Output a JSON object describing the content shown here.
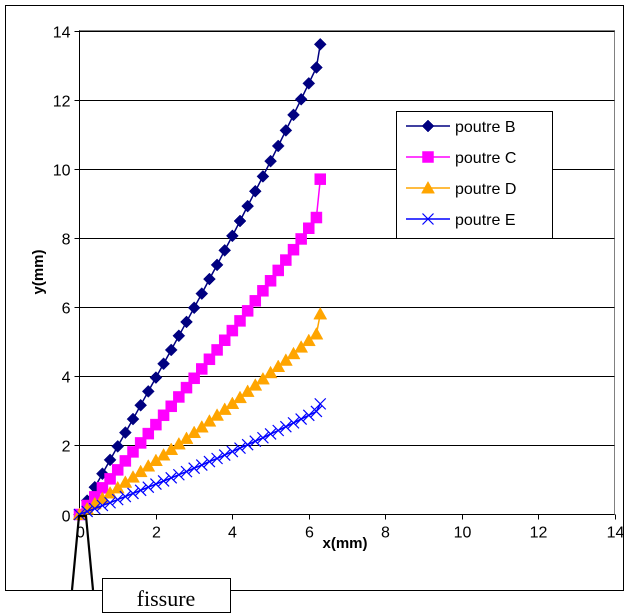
{
  "chart_data": {
    "type": "line",
    "xlabel": "x(mm)",
    "ylabel": "y(mm)",
    "xlim": [
      0,
      14
    ],
    "ylim": [
      0,
      14
    ],
    "xticks": [
      "0",
      "2",
      "4",
      "6",
      "8",
      "10",
      "12",
      "14"
    ],
    "yticks": [
      "0",
      "2",
      "4",
      "6",
      "8",
      "10",
      "12",
      "14"
    ],
    "grid": "horizontal",
    "legend_position": "right",
    "series": [
      {
        "name": "poutre B",
        "color": "#000080",
        "marker": "diamond",
        "x": [
          0.0,
          0.2,
          0.4,
          0.6,
          0.8,
          1.0,
          1.2,
          1.4,
          1.6,
          1.8,
          2.0,
          2.2,
          2.4,
          2.6,
          2.8,
          3.0,
          3.2,
          3.4,
          3.6,
          3.8,
          4.0,
          4.2,
          4.4,
          4.6,
          4.8,
          5.0,
          5.2,
          5.4,
          5.6,
          5.8,
          6.0,
          6.2,
          6.3
        ],
        "y": [
          0.0,
          0.4,
          0.79,
          1.18,
          1.58,
          1.97,
          2.37,
          2.76,
          3.16,
          3.56,
          3.96,
          4.36,
          4.76,
          5.17,
          5.57,
          5.98,
          6.39,
          6.81,
          7.22,
          7.64,
          8.06,
          8.49,
          8.92,
          9.35,
          9.78,
          10.22,
          10.66,
          11.11,
          11.56,
          12.01,
          12.47,
          12.93,
          13.6
        ]
      },
      {
        "name": "poutre C",
        "color": "#FF00FF",
        "marker": "square",
        "x": [
          0.0,
          0.2,
          0.4,
          0.6,
          0.8,
          1.0,
          1.2,
          1.4,
          1.6,
          1.8,
          2.0,
          2.2,
          2.4,
          2.6,
          2.8,
          3.0,
          3.2,
          3.4,
          3.6,
          3.8,
          4.0,
          4.2,
          4.4,
          4.6,
          4.8,
          5.0,
          5.2,
          5.4,
          5.6,
          5.8,
          6.0,
          6.2,
          6.3
        ],
        "y": [
          0.0,
          0.26,
          0.51,
          0.77,
          1.03,
          1.29,
          1.55,
          1.81,
          2.07,
          2.34,
          2.6,
          2.87,
          3.13,
          3.4,
          3.67,
          3.94,
          4.21,
          4.49,
          4.76,
          5.04,
          5.32,
          5.6,
          5.89,
          6.18,
          6.47,
          6.76,
          7.06,
          7.36,
          7.66,
          7.97,
          8.28,
          8.59,
          9.7
        ]
      },
      {
        "name": "poutre D",
        "color": "#FFA500",
        "marker": "triangle",
        "x": [
          0.0,
          0.2,
          0.4,
          0.6,
          0.8,
          1.0,
          1.2,
          1.4,
          1.6,
          1.8,
          2.0,
          2.2,
          2.4,
          2.6,
          2.8,
          3.0,
          3.2,
          3.4,
          3.6,
          3.8,
          4.0,
          4.2,
          4.4,
          4.6,
          4.8,
          5.0,
          5.2,
          5.4,
          5.6,
          5.8,
          6.0,
          6.2,
          6.3
        ],
        "y": [
          0.0,
          0.16,
          0.31,
          0.46,
          0.62,
          0.77,
          0.93,
          1.08,
          1.24,
          1.4,
          1.56,
          1.72,
          1.88,
          2.04,
          2.2,
          2.37,
          2.53,
          2.7,
          2.87,
          3.04,
          3.21,
          3.38,
          3.56,
          3.74,
          3.92,
          4.1,
          4.28,
          4.46,
          4.65,
          4.84,
          5.03,
          5.22,
          5.8
        ]
      },
      {
        "name": "poutre E",
        "color": "#0000FF",
        "marker": "x",
        "x": [
          0.0,
          0.2,
          0.4,
          0.6,
          0.8,
          1.0,
          1.2,
          1.4,
          1.6,
          1.8,
          2.0,
          2.2,
          2.4,
          2.6,
          2.8,
          3.0,
          3.2,
          3.4,
          3.6,
          3.8,
          4.0,
          4.2,
          4.4,
          4.6,
          4.8,
          5.0,
          5.2,
          5.4,
          5.6,
          5.8,
          6.0,
          6.2,
          6.3
        ],
        "y": [
          0.0,
          0.09,
          0.17,
          0.26,
          0.34,
          0.43,
          0.52,
          0.61,
          0.7,
          0.79,
          0.88,
          0.97,
          1.06,
          1.15,
          1.24,
          1.34,
          1.43,
          1.53,
          1.62,
          1.72,
          1.82,
          1.92,
          2.02,
          2.12,
          2.22,
          2.33,
          2.43,
          2.54,
          2.65,
          2.76,
          2.87,
          2.98,
          3.2
        ]
      }
    ]
  },
  "annotation": {
    "label": "fissure"
  }
}
